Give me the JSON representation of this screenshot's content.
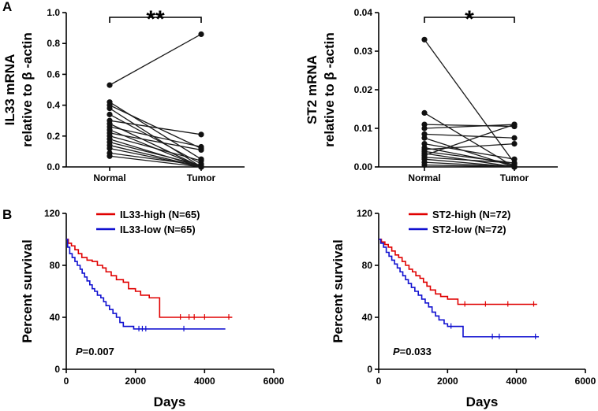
{
  "panel_labels": {
    "a": "A",
    "b": "B"
  },
  "chart_data": [
    {
      "type": "paired-dot",
      "ylabel_lines": [
        "IL33 mRNA",
        "relative to β -actin"
      ],
      "categories": [
        "Normal",
        "Tumor"
      ],
      "ylim": [
        0,
        1.0
      ],
      "yticks": [
        "0.0",
        "0.2",
        "0.4",
        "0.6",
        "0.8",
        "1.0"
      ],
      "yticks_values": [
        0,
        0.2,
        0.4,
        0.6,
        0.8,
        1.0
      ],
      "significance": "**",
      "pairs": [
        [
          0.53,
          0.86
        ],
        [
          0.42,
          0.05
        ],
        [
          0.4,
          0.12
        ],
        [
          0.38,
          0.0
        ],
        [
          0.34,
          0.02
        ],
        [
          0.3,
          0.21
        ],
        [
          0.28,
          0.0
        ],
        [
          0.26,
          0.13
        ],
        [
          0.24,
          0.0
        ],
        [
          0.22,
          0.11
        ],
        [
          0.2,
          0.04
        ],
        [
          0.18,
          0.0
        ],
        [
          0.16,
          0.01
        ],
        [
          0.14,
          0.0
        ],
        [
          0.12,
          0.0
        ],
        [
          0.09,
          0.01
        ],
        [
          0.07,
          0.0
        ]
      ]
    },
    {
      "type": "paired-dot",
      "ylabel_lines": [
        "ST2 mRNA",
        "relative to β -actin"
      ],
      "categories": [
        "Normal",
        "Tumor"
      ],
      "ylim": [
        0,
        0.04
      ],
      "yticks": [
        "0.00",
        "0.01",
        "0.02",
        "0.03",
        "0.04"
      ],
      "yticks_values": [
        0,
        0.01,
        0.02,
        0.03,
        0.04
      ],
      "significance": "*",
      "pairs": [
        [
          0.033,
          0.001
        ],
        [
          0.014,
          0.0
        ],
        [
          0.011,
          0.0105
        ],
        [
          0.01,
          0.011
        ],
        [
          0.0085,
          0.0075
        ],
        [
          0.0075,
          0.0
        ],
        [
          0.006,
          0.002
        ],
        [
          0.005,
          0.0005
        ],
        [
          0.0045,
          0.006
        ],
        [
          0.004,
          0.001
        ],
        [
          0.0035,
          0.0
        ],
        [
          0.003,
          0.011
        ],
        [
          0.0025,
          0.001
        ],
        [
          0.002,
          0.0
        ],
        [
          0.0012,
          0.0
        ],
        [
          0.0005,
          0.0
        ]
      ]
    },
    {
      "type": "line",
      "subtype": "kaplan-meier",
      "xlabel": "Days",
      "ylabel": "Percent survival",
      "xlim": [
        0,
        6000
      ],
      "ylim": [
        0,
        120
      ],
      "xticks": [
        "0",
        "2000",
        "4000",
        "6000"
      ],
      "xticks_values": [
        0,
        2000,
        4000,
        6000
      ],
      "yticks": [
        "0",
        "40",
        "80",
        "120"
      ],
      "yticks_values": [
        0,
        40,
        80,
        120
      ],
      "pvalue_prefix": "P",
      "pvalue_text": "=0.007",
      "series": [
        {
          "name": "IL33-high (N=65)",
          "color": "#e00000",
          "steps": [
            [
              0,
              100
            ],
            [
              60,
              97
            ],
            [
              150,
              95
            ],
            [
              250,
              92
            ],
            [
              350,
              89
            ],
            [
              450,
              86
            ],
            [
              600,
              84
            ],
            [
              750,
              83
            ],
            [
              900,
              80
            ],
            [
              1050,
              78
            ],
            [
              1150,
              75
            ],
            [
              1300,
              72
            ],
            [
              1450,
              69
            ],
            [
              1650,
              67
            ],
            [
              1800,
              62
            ],
            [
              2000,
              60
            ],
            [
              2150,
              57
            ],
            [
              2400,
              55
            ],
            [
              2700,
              40
            ],
            [
              4800,
              40
            ]
          ],
          "censors": [
            [
              3300,
              40
            ],
            [
              3550,
              40
            ],
            [
              3700,
              40
            ],
            [
              4000,
              40
            ],
            [
              4700,
              40
            ]
          ]
        },
        {
          "name": "IL33-low (N=65)",
          "color": "#1010d0",
          "steps": [
            [
              0,
              100
            ],
            [
              40,
              94
            ],
            [
              100,
              89
            ],
            [
              170,
              86
            ],
            [
              250,
              83
            ],
            [
              320,
              80
            ],
            [
              400,
              77
            ],
            [
              460,
              74
            ],
            [
              530,
              71
            ],
            [
              600,
              68
            ],
            [
              680,
              65
            ],
            [
              750,
              62
            ],
            [
              820,
              60
            ],
            [
              900,
              57
            ],
            [
              1000,
              55
            ],
            [
              1080,
              52
            ],
            [
              1150,
              49
            ],
            [
              1250,
              46
            ],
            [
              1350,
              43
            ],
            [
              1450,
              40
            ],
            [
              1550,
              36
            ],
            [
              1650,
              33
            ],
            [
              1950,
              31
            ],
            [
              4600,
              31
            ]
          ],
          "censors": [
            [
              2100,
              31
            ],
            [
              2200,
              31
            ],
            [
              2300,
              31
            ],
            [
              3400,
              31
            ]
          ]
        }
      ]
    },
    {
      "type": "line",
      "subtype": "kaplan-meier",
      "xlabel": "Days",
      "ylabel": "Percent survival",
      "xlim": [
        0,
        6000
      ],
      "ylim": [
        0,
        120
      ],
      "xticks": [
        "0",
        "2000",
        "4000",
        "6000"
      ],
      "xticks_values": [
        0,
        2000,
        4000,
        6000
      ],
      "yticks": [
        "0",
        "40",
        "80",
        "120"
      ],
      "yticks_values": [
        0,
        40,
        80,
        120
      ],
      "pvalue_prefix": "P",
      "pvalue_text": "=0.033",
      "series": [
        {
          "name": "ST2-high (N=72)",
          "color": "#e00000",
          "steps": [
            [
              0,
              100
            ],
            [
              80,
              98
            ],
            [
              180,
              96
            ],
            [
              280,
              94
            ],
            [
              380,
              91
            ],
            [
              480,
              88
            ],
            [
              580,
              86
            ],
            [
              680,
              83
            ],
            [
              780,
              80
            ],
            [
              880,
              77
            ],
            [
              980,
              75
            ],
            [
              1080,
              72
            ],
            [
              1200,
              70
            ],
            [
              1300,
              67
            ],
            [
              1400,
              64
            ],
            [
              1500,
              61
            ],
            [
              1650,
              58
            ],
            [
              1800,
              56
            ],
            [
              2000,
              54
            ],
            [
              2300,
              50
            ],
            [
              4600,
              50
            ]
          ],
          "censors": [
            [
              2500,
              50
            ],
            [
              3100,
              50
            ],
            [
              3750,
              50
            ],
            [
              4500,
              50
            ]
          ]
        },
        {
          "name": "ST2-low (N=72)",
          "color": "#1010d0",
          "steps": [
            [
              0,
              100
            ],
            [
              60,
              97
            ],
            [
              140,
              94
            ],
            [
              220,
              90
            ],
            [
              300,
              87
            ],
            [
              380,
              84
            ],
            [
              460,
              81
            ],
            [
              540,
              78
            ],
            [
              620,
              75
            ],
            [
              700,
              72
            ],
            [
              780,
              69
            ],
            [
              860,
              66
            ],
            [
              950,
              63
            ],
            [
              1050,
              60
            ],
            [
              1150,
              57
            ],
            [
              1250,
              54
            ],
            [
              1350,
              51
            ],
            [
              1450,
              48
            ],
            [
              1550,
              44
            ],
            [
              1650,
              41
            ],
            [
              1750,
              38
            ],
            [
              1900,
              35
            ],
            [
              2000,
              33
            ],
            [
              2450,
              25
            ],
            [
              4650,
              25
            ]
          ],
          "censors": [
            [
              2100,
              33
            ],
            [
              3300,
              25
            ],
            [
              3500,
              25
            ],
            [
              4550,
              25
            ]
          ]
        }
      ]
    }
  ]
}
